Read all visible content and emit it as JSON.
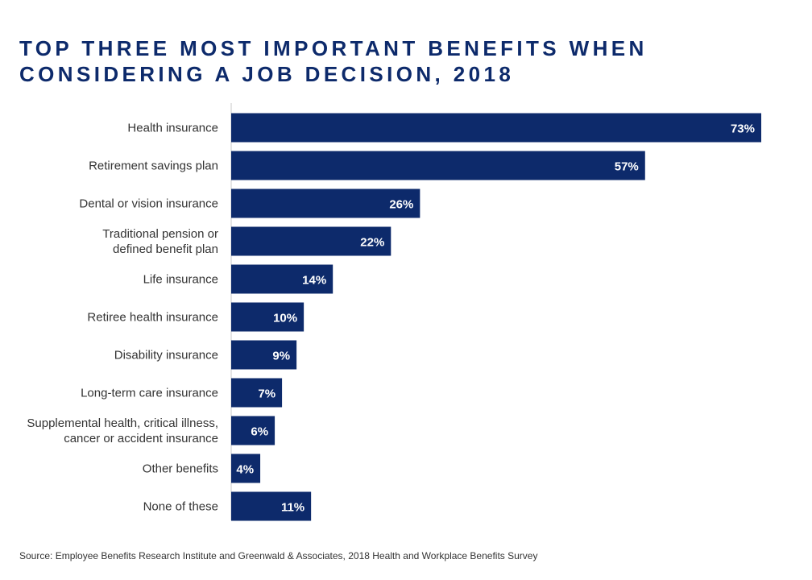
{
  "title": {
    "line1": "TOP THREE MOST IMPORTANT BENEFITS WHEN",
    "line2": "CONSIDERING A JOB DECISION, 2018"
  },
  "source": "Source: Employee Benefits Research Institute and Greenwald & Associates, 2018 Health and Workplace Benefits Survey",
  "colors": {
    "bar": "#0d2a6b",
    "bar_label": "#ffffff",
    "category_label": "#333333",
    "axis": "#c8c8c8"
  },
  "chart_data": {
    "type": "bar",
    "orientation": "horizontal",
    "title": "TOP THREE MOST IMPORTANT BENEFITS WHEN CONSIDERING A JOB DECISION, 2018",
    "xlabel": "",
    "ylabel": "",
    "grid": false,
    "legend": "none",
    "xlim": [
      0,
      73
    ],
    "categories": [
      [
        "Health insurance"
      ],
      [
        "Retirement savings plan"
      ],
      [
        "Dental or vision insurance"
      ],
      [
        "Traditional pension or",
        "defined benefit plan"
      ],
      [
        "Life insurance"
      ],
      [
        "Retiree health insurance"
      ],
      [
        "Disability insurance"
      ],
      [
        "Long-term care insurance"
      ],
      [
        "Supplemental health, critical illness,",
        "cancer or accident insurance"
      ],
      [
        "Other benefits"
      ],
      [
        "None of these"
      ]
    ],
    "values": [
      73,
      57,
      26,
      22,
      14,
      10,
      9,
      7,
      6,
      4,
      11
    ],
    "value_labels": [
      "73%",
      "57%",
      "26%",
      "22%",
      "14%",
      "10%",
      "9%",
      "7%",
      "6%",
      "4%",
      "11%"
    ]
  }
}
